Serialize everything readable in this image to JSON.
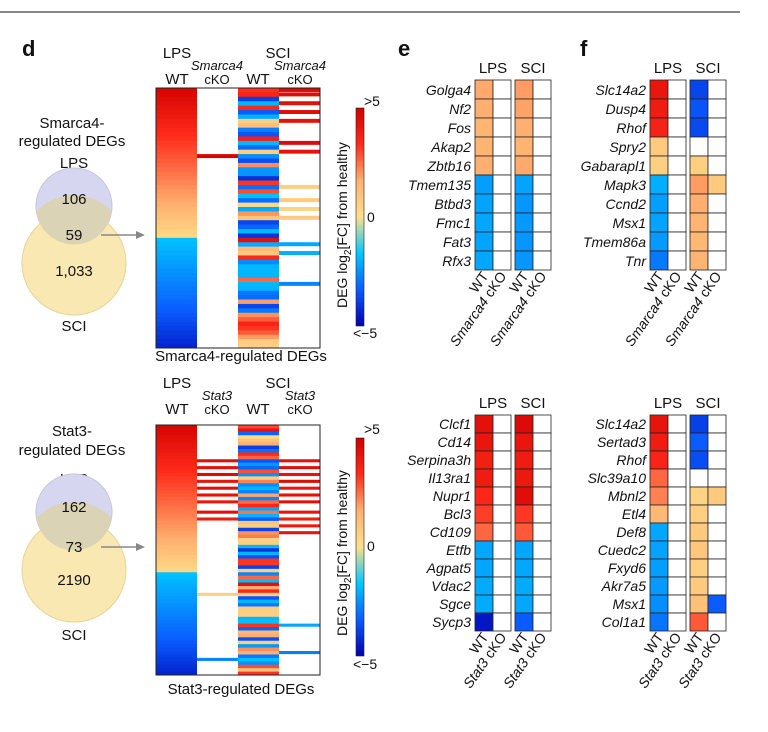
{
  "panel_labels": {
    "d": "d",
    "e": "e",
    "f": "f"
  },
  "conditions": {
    "lps": "LPS",
    "sci": "SCI",
    "wt": "WT",
    "cko": "cKO",
    "smarca4": "Smarca4",
    "stat3": "Stat3"
  },
  "colorbar": {
    "title_pre": "DEG log",
    "title_sub": "2",
    "title_post": "[FC] from healthy",
    "max_label": ">5",
    "mid_label": "0",
    "min_label": "<−5",
    "colors": [
      "#d00000",
      "#ff2a1a",
      "#ffb070",
      "#ffe08a",
      "#00c8ff",
      "#0a5cff",
      "#0000b0"
    ]
  },
  "venn_top": {
    "title_line1": "Smarca4-",
    "title_line2": "regulated DEGs",
    "set_a": "LPS",
    "set_b": "SCI",
    "only_a": "106",
    "overlap": "59",
    "only_b": "1,033"
  },
  "venn_bottom": {
    "title_line1": "Stat3-",
    "title_line2": "regulated DEGs",
    "set_a": "LPS",
    "set_b": "SCI",
    "only_a": "162",
    "overlap": "73",
    "only_b": "2190"
  },
  "heatmap_top_caption": "Smarca4-regulated DEGs",
  "heatmap_bottom_caption": "Stat3-regulated DEGs",
  "chart_data": [
    {
      "type": "heatmap",
      "id": "e-smarca4",
      "rows": [
        "Golga4",
        "Nf2",
        "Fos",
        "Akap2",
        "Zbtb16",
        "Tmem135",
        "Btbd3",
        "Fmc1",
        "Fat3",
        "Rfx3"
      ],
      "columns": [
        "LPS WT",
        "LPS Smarca4 cKO",
        "SCI WT",
        "SCI Smarca4 cKO"
      ],
      "values": [
        [
          1.6,
          0,
          1.8,
          0
        ],
        [
          1.5,
          0,
          1.7,
          0
        ],
        [
          1.4,
          0,
          1.5,
          0
        ],
        [
          1.4,
          0,
          1.4,
          0
        ],
        [
          1.5,
          0,
          1.6,
          0
        ],
        [
          -1.4,
          0,
          -1.3,
          0
        ],
        [
          -1.3,
          0,
          -1.6,
          0
        ],
        [
          -1.2,
          0,
          -1.5,
          0
        ],
        [
          -1.3,
          0,
          -1.6,
          0
        ],
        [
          -1.2,
          0,
          -1.6,
          0
        ]
      ],
      "zlim": [
        -5,
        5
      ]
    },
    {
      "type": "heatmap",
      "id": "f-smarca4",
      "rows": [
        "Slc14a2",
        "Dusp4",
        "Rhof",
        "Spry2",
        "Gabarapl1",
        "Mapk3",
        "Ccnd2",
        "Msx1",
        "Tmem86a",
        "Tnr"
      ],
      "columns": [
        "LPS WT",
        "LPS Smarca4 cKO",
        "SCI WT",
        "SCI Smarca4 cKO"
      ],
      "values": [
        [
          4.2,
          0,
          -3.5,
          0
        ],
        [
          4.0,
          0,
          -3.2,
          0
        ],
        [
          3.8,
          0,
          -3.4,
          0
        ],
        [
          0.9,
          0,
          0,
          0
        ],
        [
          0.8,
          0,
          0.8,
          0
        ],
        [
          -1.0,
          0,
          1.8,
          0.9
        ],
        [
          -1.4,
          0,
          1.5,
          0
        ],
        [
          -1.3,
          0,
          1.4,
          0
        ],
        [
          -1.5,
          0,
          1.3,
          0
        ],
        [
          -2.3,
          0,
          1.4,
          0
        ]
      ],
      "zlim": [
        -5,
        5
      ]
    },
    {
      "type": "heatmap",
      "id": "e-stat3",
      "rows": [
        "Clcf1",
        "Cd14",
        "Serpina3h",
        "Il13ra1",
        "Nupr1",
        "Bcl3",
        "Cd109",
        "Etfb",
        "Agpat5",
        "Vdac2",
        "Sgce",
        "Sycp3"
      ],
      "columns": [
        "LPS WT",
        "LPS Stat3 cKO",
        "SCI WT",
        "SCI Stat3 cKO"
      ],
      "values": [
        [
          4.4,
          0,
          4.6,
          0
        ],
        [
          4.2,
          0,
          4.2,
          0
        ],
        [
          3.9,
          0,
          4.0,
          0
        ],
        [
          4.0,
          0,
          4.1,
          0
        ],
        [
          3.6,
          0,
          4.5,
          0
        ],
        [
          3.2,
          0,
          3.3,
          0
        ],
        [
          2.6,
          0,
          2.8,
          0
        ],
        [
          -1.2,
          0,
          -1.2,
          0
        ],
        [
          -1.2,
          0,
          -1.2,
          0
        ],
        [
          -1.1,
          0,
          -1.1,
          0
        ],
        [
          -1.1,
          0,
          -1.2,
          0
        ],
        [
          -4.5,
          0,
          -3.0,
          0
        ]
      ],
      "zlim": [
        -5,
        5
      ]
    },
    {
      "type": "heatmap",
      "id": "f-stat3",
      "rows": [
        "Slc14a2",
        "Sertad3",
        "Rhof",
        "Slc39a10",
        "Mbnl2",
        "Etl4",
        "Def8",
        "Cuedc2",
        "Fxyd6",
        "Akr7a5",
        "Msx1",
        "Col1a1"
      ],
      "columns": [
        "LPS WT",
        "LPS Stat3 cKO",
        "SCI WT",
        "SCI Stat3 cKO"
      ],
      "values": [
        [
          4.3,
          0,
          -3.6,
          0
        ],
        [
          4.0,
          0,
          -3.0,
          0
        ],
        [
          3.7,
          0,
          -3.3,
          0
        ],
        [
          2.6,
          0,
          0,
          0
        ],
        [
          2.2,
          0,
          0.7,
          0.9
        ],
        [
          1.3,
          0,
          0.8,
          0
        ],
        [
          -1.2,
          0,
          0.9,
          0
        ],
        [
          -1.3,
          0,
          1.0,
          0
        ],
        [
          -1.4,
          0,
          0.8,
          0
        ],
        [
          -1.5,
          0,
          0.9,
          0
        ],
        [
          -1.8,
          0,
          1.1,
          -3.0
        ],
        [
          -2.4,
          0,
          2.8,
          0
        ]
      ],
      "zlim": [
        -5,
        5
      ]
    },
    {
      "type": "heatmap",
      "id": "d-smarca4-overview",
      "note": "schematic of 59 Smarca4-regulated DEGs",
      "rows_count": 59,
      "columns": [
        "LPS WT",
        "LPS Smarca4 cKO",
        "SCI WT",
        "SCI Smarca4 cKO"
      ],
      "zlim": [
        -5,
        5
      ]
    },
    {
      "type": "heatmap",
      "id": "d-stat3-overview",
      "note": "schematic of 73 Stat3-regulated DEGs",
      "rows_count": 73,
      "columns": [
        "LPS WT",
        "LPS Stat3 cKO",
        "SCI WT",
        "SCI Stat3 cKO"
      ],
      "zlim": [
        -5,
        5
      ]
    }
  ]
}
